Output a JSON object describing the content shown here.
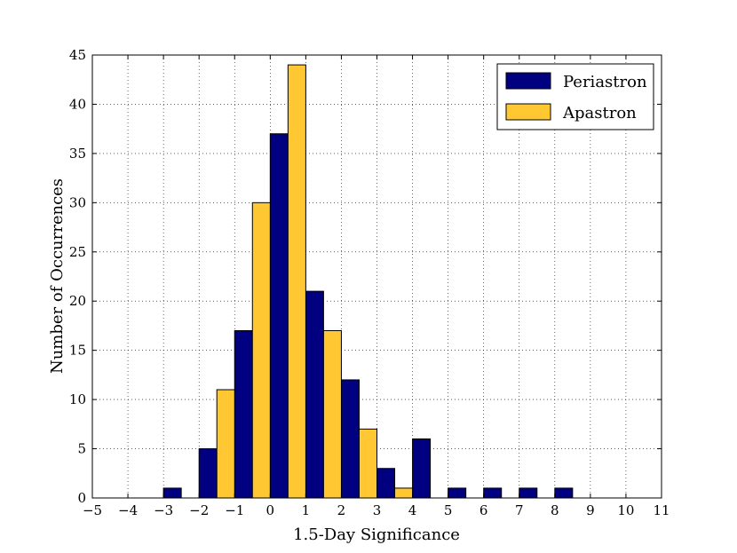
{
  "chart_data": {
    "type": "bar",
    "xlabel": "1.5-Day Significance",
    "ylabel": "Number of Occurrences",
    "xlim": [
      -5,
      11
    ],
    "ylim": [
      0,
      45
    ],
    "xticks": [
      "−5",
      "−4",
      "−3",
      "−2",
      "−1",
      "0",
      "1",
      "2",
      "3",
      "4",
      "5",
      "6",
      "7",
      "8",
      "9",
      "10",
      "11"
    ],
    "yticks": [
      "0",
      "5",
      "10",
      "15",
      "20",
      "25",
      "30",
      "35",
      "40",
      "45"
    ],
    "grid": true,
    "legend_position": "top-right",
    "bin_edges": [
      -3,
      -2,
      -1,
      0,
      1,
      2,
      3,
      4,
      5,
      6,
      7,
      8,
      9
    ],
    "series": [
      {
        "name": "Periastron",
        "color": "#000080",
        "values": [
          1,
          5,
          17,
          37,
          21,
          12,
          3,
          6,
          1,
          1,
          1,
          1
        ]
      },
      {
        "name": "Apastron",
        "color": "#ffc832",
        "values": [
          0,
          11,
          30,
          44,
          17,
          7,
          1,
          0,
          0,
          0,
          0,
          0
        ]
      }
    ]
  }
}
